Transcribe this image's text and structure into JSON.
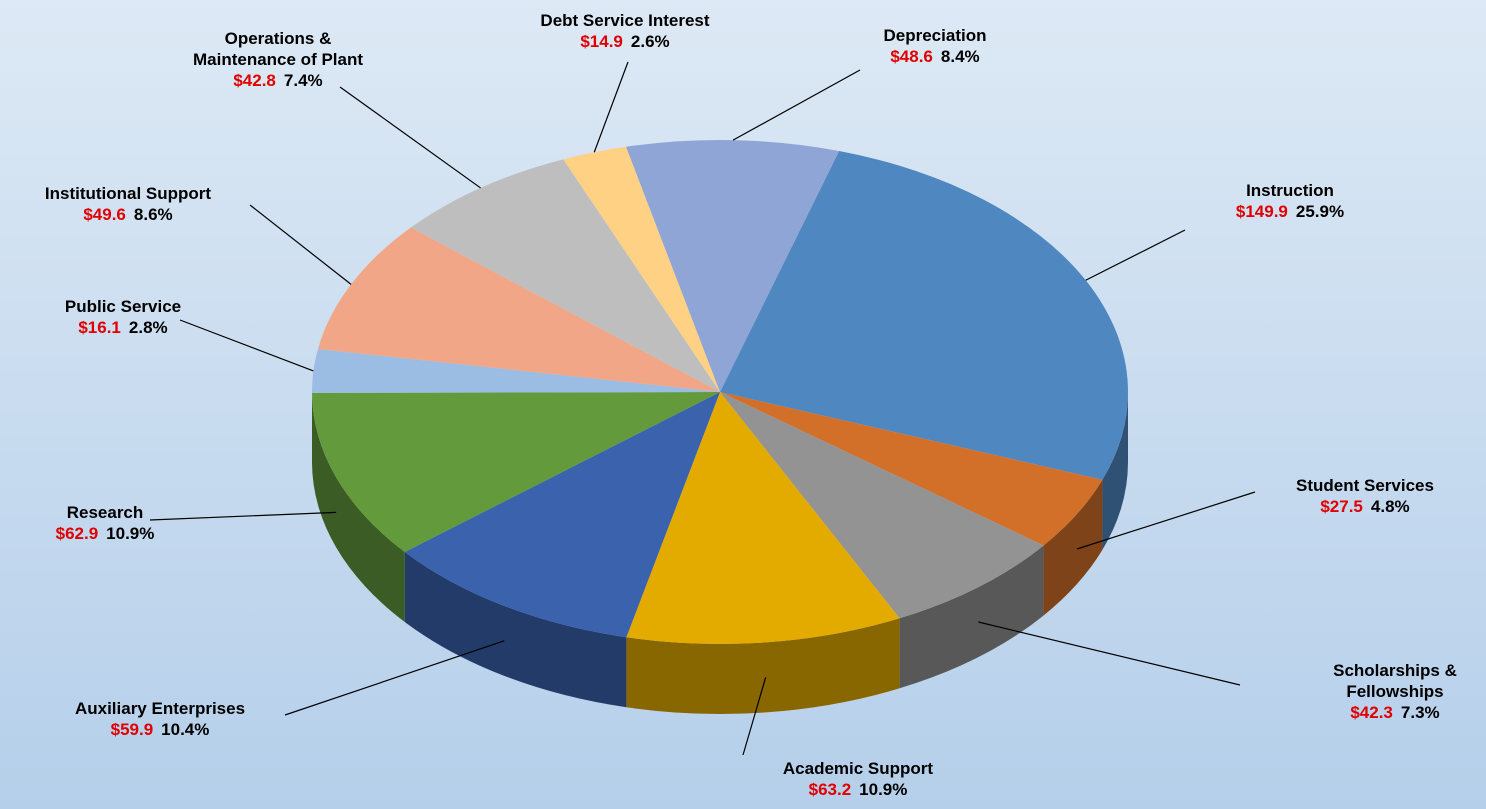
{
  "chart_data": {
    "type": "pie",
    "categories": [
      "Instruction",
      "Student Services",
      "Scholarships & Fellowships",
      "Academic Support",
      "Auxiliary Enterprises",
      "Research",
      "Public Service",
      "Institutional Support",
      "Operations & Maintenance of Plant",
      "Debt Service Interest",
      "Depreciation"
    ],
    "values": [
      149.9,
      27.5,
      42.3,
      63.2,
      59.9,
      62.9,
      16.1,
      49.6,
      42.8,
      14.9,
      48.6
    ],
    "value_labels": [
      "$149.9",
      "$27.5",
      "$42.3",
      "$63.2",
      "$59.9",
      "$62.9",
      "$16.1",
      "$49.6",
      "$42.8",
      "$14.9",
      "$48.6"
    ],
    "percents": [
      25.9,
      4.8,
      7.3,
      10.9,
      10.4,
      10.9,
      2.8,
      8.6,
      7.4,
      2.6,
      8.4
    ],
    "percent_labels": [
      "25.9%",
      "4.8%",
      "7.3%",
      "10.9%",
      "10.4%",
      "10.9%",
      "2.8%",
      "8.6%",
      "7.4%",
      "2.6%",
      "8.4%"
    ],
    "colors": [
      "#4f87c0",
      "#d2702a",
      "#939393",
      "#e3aa00",
      "#3a62ad",
      "#629a3c",
      "#9bbde4",
      "#f2a688",
      "#bebebe",
      "#ffd184",
      "#8fa5d5"
    ]
  }
}
